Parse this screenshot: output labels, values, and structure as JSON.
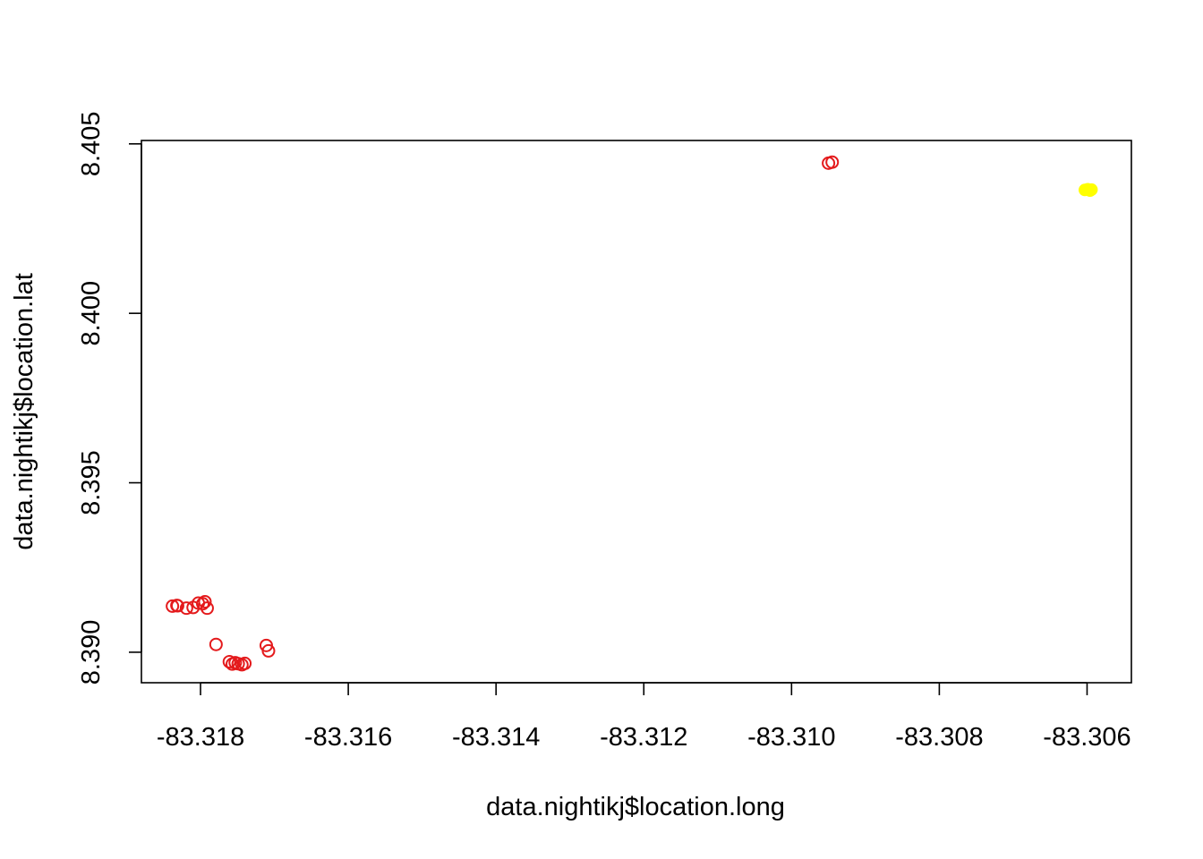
{
  "chart_data": {
    "type": "scatter",
    "title": "",
    "xlabel": "data.nightikj$location.long",
    "ylabel": "data.nightikj$location.lat",
    "xlim": [
      -83.3188,
      -83.3054
    ],
    "ylim": [
      8.3891,
      8.4051
    ],
    "x_ticks": [
      -83.318,
      -83.316,
      -83.314,
      -83.312,
      -83.31,
      -83.308,
      -83.306
    ],
    "x_tick_labels": [
      "-83.318",
      "-83.316",
      "-83.314",
      "-83.312",
      "-83.310",
      "-83.308",
      "-83.306"
    ],
    "y_ticks": [
      8.39,
      8.395,
      8.4,
      8.405
    ],
    "y_tick_labels": [
      "8.390",
      "8.395",
      "8.400",
      "8.405"
    ],
    "grid": false,
    "series": [
      {
        "marker": "open-circle",
        "color": "#e41a1c",
        "points": [
          {
            "x": -83.31838,
            "y": 8.39136
          },
          {
            "x": -83.31832,
            "y": 8.39138
          },
          {
            "x": -83.31831,
            "y": 8.39137
          },
          {
            "x": -83.31819,
            "y": 8.3913
          },
          {
            "x": -83.3181,
            "y": 8.39132
          },
          {
            "x": -83.31803,
            "y": 8.39145
          },
          {
            "x": -83.31797,
            "y": 8.39143
          },
          {
            "x": -83.31794,
            "y": 8.39149
          },
          {
            "x": -83.31791,
            "y": 8.3913
          },
          {
            "x": -83.31779,
            "y": 8.39023
          },
          {
            "x": -83.31761,
            "y": 8.38972
          },
          {
            "x": -83.31757,
            "y": 8.38965
          },
          {
            "x": -83.31753,
            "y": 8.38969
          },
          {
            "x": -83.31749,
            "y": 8.38966
          },
          {
            "x": -83.31744,
            "y": 8.38963
          },
          {
            "x": -83.3174,
            "y": 8.38967
          },
          {
            "x": -83.31711,
            "y": 8.3902
          },
          {
            "x": -83.31708,
            "y": 8.39004
          },
          {
            "x": -83.3095,
            "y": 8.40443
          },
          {
            "x": -83.30945,
            "y": 8.40446
          }
        ]
      },
      {
        "marker": "filled-circle",
        "color": "#ffff00",
        "points": [
          {
            "x": -83.30603,
            "y": 8.40364
          },
          {
            "x": -83.30599,
            "y": 8.40366
          },
          {
            "x": -83.30596,
            "y": 8.40362
          },
          {
            "x": -83.30594,
            "y": 8.40365
          }
        ]
      }
    ]
  }
}
